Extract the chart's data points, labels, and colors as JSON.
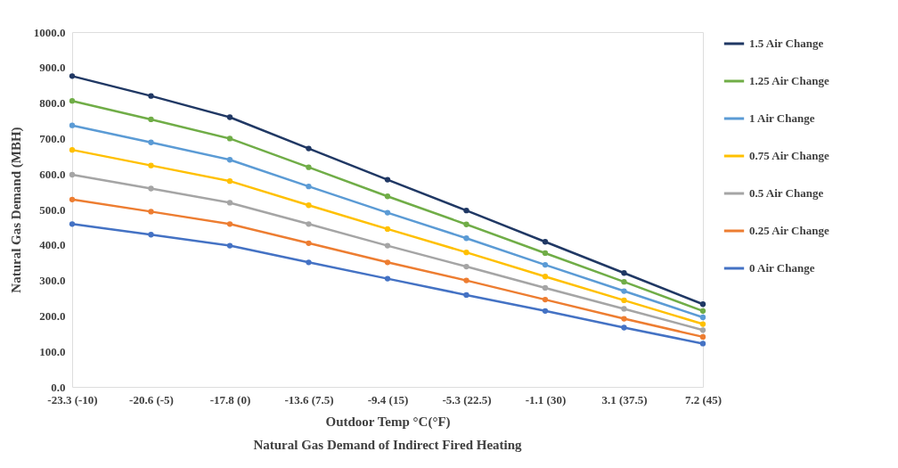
{
  "chart_data": {
    "type": "line",
    "title": "Natural Gas Demand of Indirect Fired Heating",
    "xlabel": "Outdoor Temp °C(°F)",
    "ylabel": "Natural Gas Demand (MBH)",
    "categories": [
      "-23.3 (-10)",
      "-20.6 (-5)",
      "-17.8 (0)",
      "-13.6 (7.5)",
      "-9.4 (15)",
      "-5.3 (22.5)",
      "-1.1 (30)",
      "3.1 (37.5)",
      "7.2 (45)"
    ],
    "series": [
      {
        "name": "1.5 Air Change",
        "color": "#203864",
        "values": [
          876,
          820,
          760,
          672,
          584,
          497,
          409,
          321,
          233
        ]
      },
      {
        "name": "1.25 Air Change",
        "color": "#70ad47",
        "values": [
          806,
          754,
          700,
          619,
          537,
          458,
          377,
          296,
          214
        ]
      },
      {
        "name": "1 Air Change",
        "color": "#5b9bd5",
        "values": [
          737,
          689,
          640,
          565,
          491,
          419,
          344,
          270,
          196
        ]
      },
      {
        "name": "0.75 Air Change",
        "color": "#ffc000",
        "values": [
          668,
          624,
          580,
          512,
          445,
          379,
          311,
          244,
          177
        ]
      },
      {
        "name": "0.5 Air Change",
        "color": "#a5a5a5",
        "values": [
          598,
          559,
          519,
          459,
          398,
          339,
          279,
          220,
          160
        ]
      },
      {
        "name": "0.25 Air Change",
        "color": "#ed7d31",
        "values": [
          528,
          494,
          459,
          405,
          351,
          300,
          246,
          192,
          141
        ]
      },
      {
        "name": "0 Air Change",
        "color": "#4472c4",
        "values": [
          459,
          429,
          398,
          351,
          305,
          259,
          214,
          167,
          122
        ]
      }
    ],
    "ylim": [
      0,
      1000
    ],
    "yticks": [
      {
        "value": 0,
        "label": "0.0"
      },
      {
        "value": 100,
        "label": "100.0"
      },
      {
        "value": 200,
        "label": "200.0"
      },
      {
        "value": 300,
        "label": "300.0"
      },
      {
        "value": 400,
        "label": "400.0"
      },
      {
        "value": 500,
        "label": "500.0"
      },
      {
        "value": 600,
        "label": "600.0"
      },
      {
        "value": 700,
        "label": "700.0"
      },
      {
        "value": 800,
        "label": "800.0"
      },
      {
        "value": 900,
        "label": "900.0"
      },
      {
        "value": 1000,
        "label": "1000.0"
      }
    ],
    "grid": false,
    "legend": "right",
    "marker": "circle",
    "line_style": "solid"
  }
}
